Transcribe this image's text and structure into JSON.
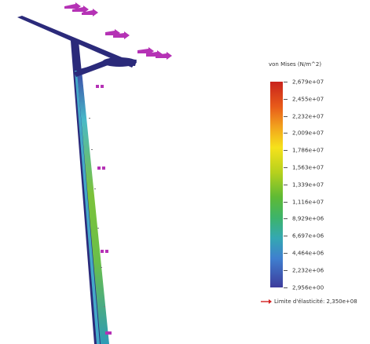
{
  "legend": {
    "title": "von Mises (N/m^2)",
    "ticks": [
      "2,679e+07",
      "2,455e+07",
      "2,232e+07",
      "2,009e+07",
      "1,786e+07",
      "1,563e+07",
      "1,339e+07",
      "1,116e+07",
      "8,929e+06",
      "6,697e+06",
      "4,464e+06",
      "2,232e+06",
      "2,956e+00"
    ],
    "yield_label": "Limite d'élasticité: 2,350e+08"
  },
  "colors": {
    "beam": "#2b2a7a",
    "arrow": "#b532b5",
    "yield_arrow": "#d32020"
  },
  "icons": [
    "force-arrow-icon",
    "fixture-marker-icon",
    "yield-arrow-icon"
  ]
}
